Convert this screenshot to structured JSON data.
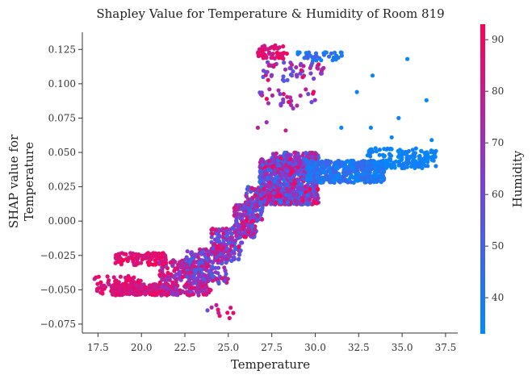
{
  "chart_data": {
    "type": "scatter",
    "title": "Shapley Value for Temperature & Humidity of Room 819",
    "xlabel": "Temperature",
    "ylabel_lines": [
      "SHAP value for",
      "Temperature"
    ],
    "xlim": [
      16.6,
      38.2
    ],
    "ylim": [
      -0.0815,
      0.1375
    ],
    "xticks": [
      17.5,
      20.0,
      22.5,
      25.0,
      27.5,
      30.0,
      32.5,
      35.0,
      37.5
    ],
    "xtick_labels": [
      "17.5",
      "20.0",
      "22.5",
      "25.0",
      "27.5",
      "30.0",
      "32.5",
      "35.0",
      "37.5"
    ],
    "yticks": [
      -0.075,
      -0.05,
      -0.025,
      0.0,
      0.025,
      0.05,
      0.075,
      0.1,
      0.125
    ],
    "ytick_labels": [
      "−0.075",
      "−0.050",
      "−0.025",
      "0.000",
      "0.025",
      "0.050",
      "0.075",
      "0.100",
      "0.125"
    ],
    "colorbar": {
      "label": "Humidity",
      "range": [
        33,
        93
      ],
      "ticks": [
        40,
        50,
        60,
        70,
        80,
        90
      ],
      "tick_labels": [
        "40",
        "50",
        "60",
        "70",
        "80",
        "90"
      ],
      "color_low": "#008afb",
      "color_mid": "#7b3fd6",
      "color_high": "#ff0052"
    },
    "clusters": [
      {
        "x": [
          17.3,
          20.0
        ],
        "y": [
          -0.053,
          -0.04
        ],
        "h": [
          78,
          93
        ],
        "n": 70
      },
      {
        "x": [
          18.3,
          22.0
        ],
        "y": [
          -0.054,
          -0.046
        ],
        "h": [
          76,
          93
        ],
        "n": 260
      },
      {
        "x": [
          18.5,
          21.5
        ],
        "y": [
          -0.032,
          -0.023
        ],
        "h": [
          80,
          93
        ],
        "n": 110
      },
      {
        "x": [
          21.0,
          24.0
        ],
        "y": [
          -0.054,
          -0.028
        ],
        "h": [
          62,
          90
        ],
        "n": 280
      },
      {
        "x": [
          22.5,
          25.0
        ],
        "y": [
          -0.046,
          -0.02
        ],
        "h": [
          45,
          85
        ],
        "n": 160
      },
      {
        "x": [
          24.0,
          25.8
        ],
        "y": [
          -0.03,
          -0.005
        ],
        "h": [
          45,
          90
        ],
        "n": 170
      },
      {
        "x": [
          25.3,
          26.6
        ],
        "y": [
          -0.012,
          0.012
        ],
        "h": [
          48,
          90
        ],
        "n": 150
      },
      {
        "x": [
          26.0,
          27.0
        ],
        "y": [
          0.0,
          0.025
        ],
        "h": [
          45,
          92
        ],
        "n": 120
      },
      {
        "x": [
          26.8,
          30.2
        ],
        "y": [
          0.012,
          0.045
        ],
        "h": [
          40,
          93
        ],
        "n": 950
      },
      {
        "x": [
          27.5,
          30.2
        ],
        "y": [
          0.04,
          0.05
        ],
        "h": [
          40,
          88
        ],
        "n": 120
      },
      {
        "x": [
          29.5,
          34.0
        ],
        "y": [
          0.028,
          0.044
        ],
        "h": [
          34,
          50
        ],
        "n": 460
      },
      {
        "x": [
          33.0,
          37.0
        ],
        "y": [
          0.038,
          0.053
        ],
        "h": [
          33,
          40
        ],
        "n": 160
      },
      {
        "x": [
          26.7,
          28.4
        ],
        "y": [
          0.118,
          0.128
        ],
        "h": [
          78,
          93
        ],
        "n": 50
      },
      {
        "x": [
          27.0,
          30.5
        ],
        "y": [
          0.102,
          0.116
        ],
        "h": [
          52,
          90
        ],
        "n": 55
      },
      {
        "x": [
          29.0,
          31.7
        ],
        "y": [
          0.117,
          0.123
        ],
        "h": [
          34,
          50
        ],
        "n": 35
      },
      {
        "x": [
          26.8,
          30.0
        ],
        "y": [
          0.082,
          0.096
        ],
        "h": [
          58,
          92
        ],
        "n": 30
      },
      {
        "x": [
          24.0,
          25.3
        ],
        "y": [
          -0.074,
          -0.06
        ],
        "h": [
          72,
          90
        ],
        "n": 8
      }
    ],
    "outliers": [
      {
        "x": 33.3,
        "y": 0.106,
        "h": 36
      },
      {
        "x": 35.3,
        "y": 0.118,
        "h": 35
      },
      {
        "x": 36.4,
        "y": 0.088,
        "h": 35
      },
      {
        "x": 32.4,
        "y": 0.094,
        "h": 35
      },
      {
        "x": 34.8,
        "y": 0.075,
        "h": 36
      },
      {
        "x": 33.2,
        "y": 0.068,
        "h": 36
      },
      {
        "x": 31.5,
        "y": 0.068,
        "h": 35
      },
      {
        "x": 34.4,
        "y": 0.061,
        "h": 36
      },
      {
        "x": 36.7,
        "y": 0.059,
        "h": 34
      },
      {
        "x": 26.7,
        "y": 0.068,
        "h": 78
      },
      {
        "x": 28.3,
        "y": 0.066,
        "h": 80
      },
      {
        "x": 27.2,
        "y": 0.072,
        "h": 70
      },
      {
        "x": 23.8,
        "y": -0.065,
        "h": 60
      },
      {
        "x": 24.5,
        "y": -0.069,
        "h": 88
      }
    ]
  }
}
